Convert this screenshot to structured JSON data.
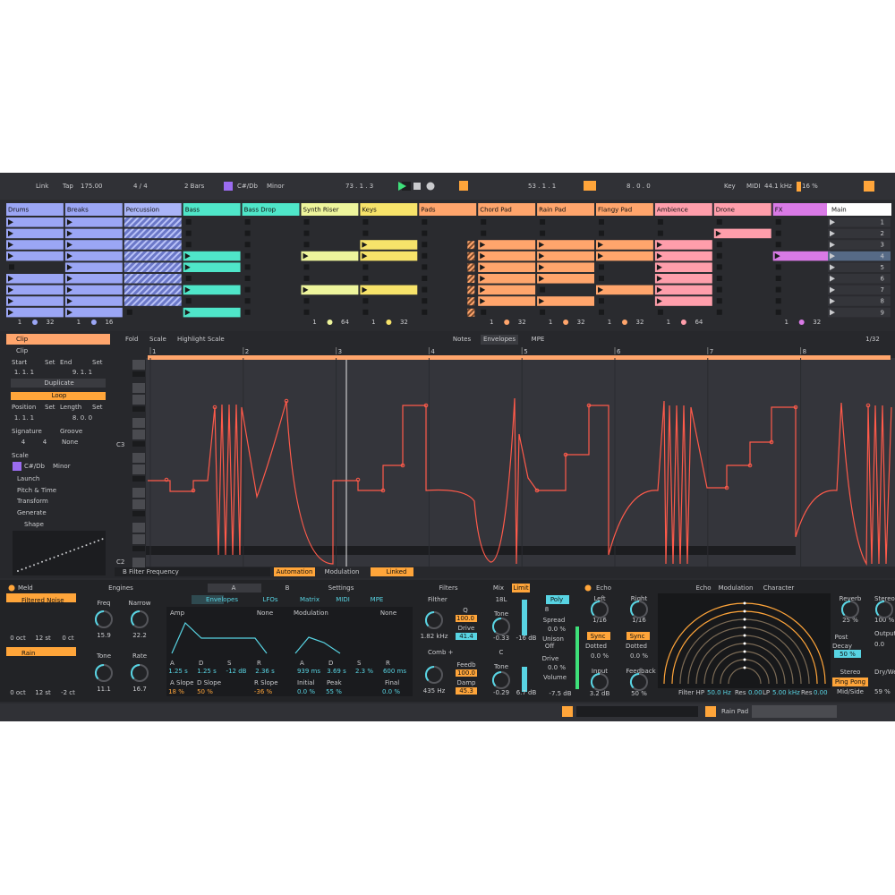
{
  "toolbar": {
    "link": "Link",
    "tap": "Tap",
    "tempo": "175.00",
    "signature": "4 / 4",
    "quantize": "2 Bars",
    "key": "C#/Db",
    "scale": "Minor",
    "position": "73 . 1 . 3",
    "loop_start": "53 . 1 . 1",
    "loop_length": "8 . 0 . 0",
    "key_map": "Key",
    "midi": "MIDI",
    "sample_rate": "44.1 kHz",
    "cpu": "16 %"
  },
  "tracks": [
    {
      "name": "Drums",
      "color": "#9ba6f5",
      "footer": [
        "1",
        "32"
      ]
    },
    {
      "name": "Breaks",
      "color": "#9ba6f5",
      "footer": [
        "1",
        "16"
      ]
    },
    {
      "name": "Percussion",
      "color": "#a9b4f7"
    },
    {
      "name": "Bass",
      "color": "#4fe6c9"
    },
    {
      "name": "Bass Drop",
      "color": "#4fe6c9"
    },
    {
      "name": "Synth Riser",
      "color": "#eef59c",
      "footer": [
        "1",
        "64"
      ]
    },
    {
      "name": "Keys",
      "color": "#f7e36a",
      "footer": [
        "1",
        "32"
      ]
    },
    {
      "name": "Pads",
      "color": "#ffa56c"
    },
    {
      "name": "Chord Pad",
      "color": "#ffa56c",
      "footer": [
        "1",
        "32"
      ]
    },
    {
      "name": "Rain Pad",
      "color": "#ffa56c",
      "footer": [
        "1",
        "32"
      ]
    },
    {
      "name": "Flangy Pad",
      "color": "#ffa56c",
      "footer": [
        "1",
        "32"
      ]
    },
    {
      "name": "Ambience",
      "color": "#ff9eab",
      "footer": [
        "1",
        "64"
      ]
    },
    {
      "name": "Drone",
      "color": "#ff9eab"
    },
    {
      "name": "FX",
      "color": "#d97ae6",
      "footer": [
        "1",
        "32"
      ]
    }
  ],
  "main_track": "Main",
  "scenes": [
    "1",
    "2",
    "3",
    "4",
    "5",
    "6",
    "7",
    "8",
    "9"
  ],
  "clip_panel": {
    "labels": [
      "Clip",
      "Clip",
      "Start",
      "Set",
      "End",
      "Set",
      "1. 1. 1",
      "9. 1. 1",
      "Duplicate",
      "Loop",
      "Position",
      "Set",
      "Length",
      "Set",
      "1. 1. 1",
      "8. 0. 0",
      "Signature",
      "Groove",
      "4",
      "4",
      "None",
      "Scale",
      "C#/Db",
      "Minor",
      "Launch",
      "Pitch & Time",
      "Transform",
      "Generate",
      "Shape",
      "Up"
    ]
  },
  "editor": {
    "view_buttons": [
      "Fold",
      "Scale",
      "Highlight Scale"
    ],
    "tabs": [
      "Notes",
      "Envelopes",
      "MPE"
    ],
    "grid": "1/32",
    "ruler": [
      "1",
      "2",
      "3",
      "4",
      "5",
      "6",
      "7",
      "8"
    ],
    "notes": [
      "C3",
      "C2"
    ],
    "envelope": "B Filter Frequency",
    "buttons": [
      "Automation",
      "Modulation",
      "Linked"
    ]
  },
  "devices": {
    "meld": {
      "labels": [
        "Meld",
        "Engines",
        "A",
        "B",
        "Settings",
        "Filtered Noise",
        "Freq",
        "Narrow",
        "15.9",
        "22.2",
        "0 oct",
        "12 st",
        "0 ct",
        "Rain",
        "Tone",
        "Rate",
        "11.1",
        "16.7",
        "0 oct",
        "12 st",
        "-2 ct",
        "Envelopes",
        "LFOs",
        "Matrix",
        "MIDI",
        "MPE",
        "Amp",
        "None",
        "Modulation",
        "None",
        "A",
        "D",
        "S",
        "R",
        "1.25 s",
        "1.25 s",
        "-12 dB",
        "2.36 s",
        "A Slope",
        "D Slope",
        "R Slope",
        "18 %",
        "50 %",
        "-36 %",
        "A",
        "D",
        "S",
        "R",
        "939 ms",
        "3.69 s",
        "2.3 %",
        "600 ms",
        "Initial",
        "Peak",
        "Final",
        "0.0 %",
        "55 %",
        "0.0 %"
      ]
    },
    "filters": {
      "labels": [
        "Filters",
        "Filther",
        "Q",
        "100.0",
        "Drive",
        "41.4",
        "1.82 kHz",
        "Comb +",
        "Feedb",
        "100.0",
        "Damp",
        "45.3",
        "435 Hz"
      ]
    },
    "mix": {
      "labels": [
        "Mix",
        "Limit",
        "18L",
        "Tone",
        "-0.33",
        "-16 dB",
        "C",
        "Tone",
        "-0.29",
        "6.7 dB",
        "Poly",
        "8",
        "Spread",
        "0.0 %",
        "Unison",
        "Off",
        "Drive",
        "0.0 %",
        "Volume",
        "-7.5 dB"
      ]
    },
    "echo": {
      "labels": [
        "Echo",
        "Echo",
        "Modulation",
        "Character",
        "Left",
        "Right",
        "1/16",
        "1/16",
        "Sync",
        "Sync",
        "Dotted",
        "Dotted",
        "0.0 %",
        "0.0 %",
        "Input",
        "Feedback",
        "3.2 dB",
        "50 %",
        "Filter HP",
        "50.0 Hz",
        "Res",
        "0.00",
        "LP",
        "5.00 kHz",
        "Res",
        "0.00",
        "Reverb",
        "25 %",
        "Post",
        "Decay",
        "50 %",
        "Stereo",
        "Ping Pong",
        "Mid/Side",
        "Stereo",
        "100 %",
        "Output",
        "0.0",
        "Dry/Wet",
        "59 %"
      ]
    }
  },
  "status": {
    "track": "Rain Pad"
  }
}
